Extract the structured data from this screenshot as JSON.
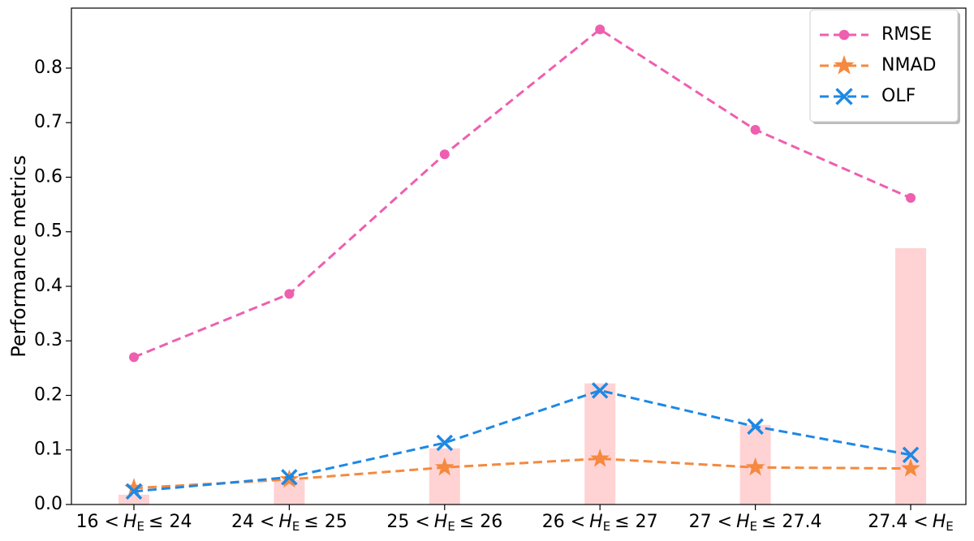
{
  "chart_data": {
    "type": "line",
    "y_label": "Performance metrics",
    "categories": [
      {
        "left": "16 <",
        "symbol": "H",
        "subscript": "E",
        "right": "≤ 24"
      },
      {
        "left": "24 <",
        "symbol": "H",
        "subscript": "E",
        "right": "≤ 25"
      },
      {
        "left": "25 <",
        "symbol": "H",
        "subscript": "E",
        "right": "≤ 26"
      },
      {
        "left": "26 <",
        "symbol": "H",
        "subscript": "E",
        "right": "≤ 27"
      },
      {
        "left": "27 <",
        "symbol": "H",
        "subscript": "E",
        "right": "≤ 27.4"
      },
      {
        "left": "27.4 <",
        "symbol": "H",
        "subscript": "E"
      }
    ],
    "series": [
      {
        "name": "RMSE",
        "color": "#ee5fb0",
        "marker": "circle",
        "values": [
          0.27,
          0.386,
          0.642,
          0.871,
          0.687,
          0.562
        ]
      },
      {
        "name": "NMAD",
        "color": "#f5893f",
        "marker": "star",
        "values": [
          0.03,
          0.046,
          0.068,
          0.084,
          0.068,
          0.066
        ]
      },
      {
        "name": "OLF",
        "color": "#1e88e5",
        "marker": "x",
        "values": [
          0.024,
          0.05,
          0.113,
          0.209,
          0.143,
          0.091
        ]
      }
    ],
    "bars": {
      "color": "#ffd3d3",
      "values": [
        0.018,
        0.045,
        0.103,
        0.222,
        0.146,
        0.47
      ]
    },
    "ylim": [
      0,
      0.91
    ],
    "yticks": [
      {
        "value": 0,
        "label": "0.0"
      },
      0.1,
      0.2,
      0.3,
      0.4,
      0.5,
      0.6,
      0.7,
      0.8
    ],
    "legend": "upper right"
  }
}
